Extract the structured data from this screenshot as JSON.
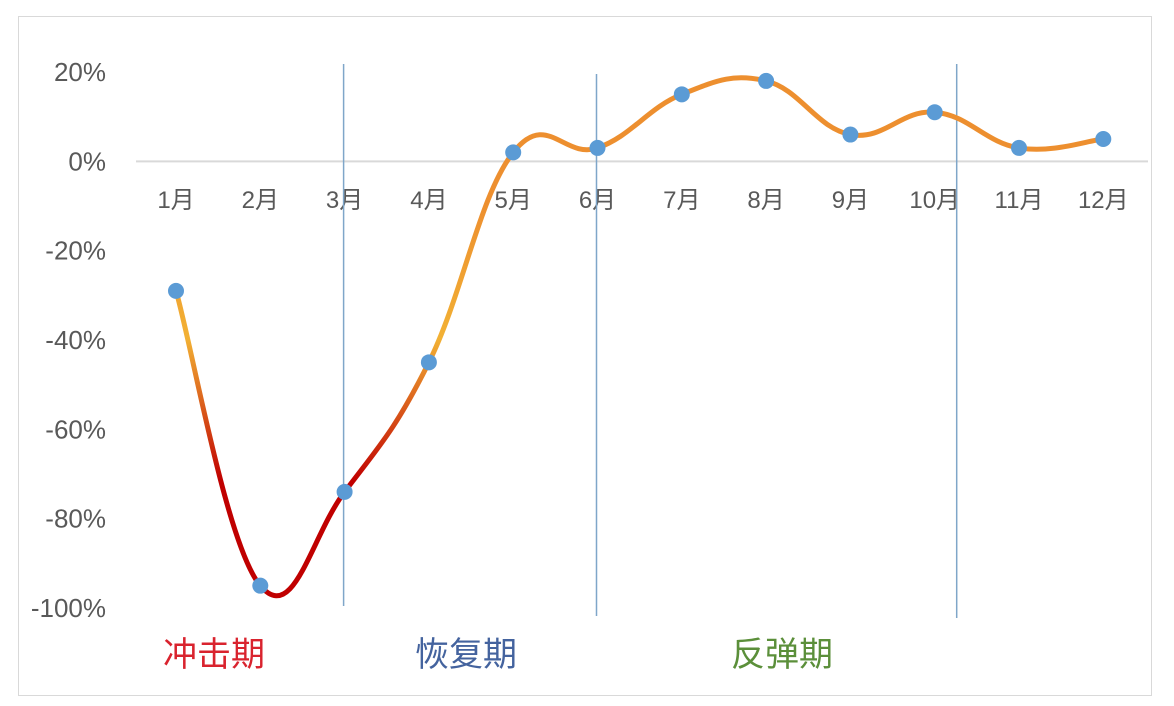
{
  "chart_data": {
    "type": "line",
    "title": "",
    "xlabel": "",
    "ylabel": "",
    "categories": [
      "1月",
      "2月",
      "3月",
      "4月",
      "5月",
      "6月",
      "7月",
      "8月",
      "9月",
      "10月",
      "11月",
      "12月"
    ],
    "series": [
      {
        "values": [
          -29,
          -95,
          -74,
          -45,
          2,
          3,
          15,
          18,
          6,
          11,
          3,
          5
        ]
      }
    ],
    "ylim": [
      -100,
      20
    ],
    "yticks": [
      20,
      0,
      -20,
      -40,
      -60,
      -80,
      -100
    ],
    "ytick_labels": [
      "20%",
      "0%",
      "-20%",
      "-40%",
      "-60%",
      "-80%",
      "-100%"
    ],
    "grid": false,
    "smooth": true,
    "phase_dividers_after_category": [
      "3月",
      "6月",
      "10月"
    ],
    "phases": [
      {
        "label": "冲击期",
        "color": "#d9232e"
      },
      {
        "label": "恢复期",
        "color": "#44639e"
      },
      {
        "label": "反弹期",
        "color": "#5b8f3a"
      }
    ],
    "colors": {
      "line_low": "#c00000",
      "line_mid": "#f2b134",
      "line_high": "#ed8f2f",
      "marker": "#5b9bd5",
      "divider": "#7fa6c9",
      "axis": "#d9d9d9"
    }
  }
}
